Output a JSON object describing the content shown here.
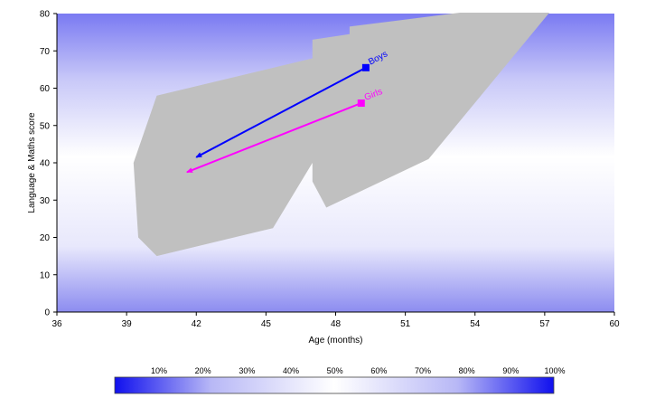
{
  "chart_data": {
    "type": "line",
    "xlabel": "Age (months)",
    "ylabel": "Language & Maths score",
    "xlim": [
      36,
      60
    ],
    "ylim": [
      0,
      80
    ],
    "x_ticks": [
      "36",
      "39",
      "42",
      "45",
      "48",
      "51",
      "54",
      "57",
      "60"
    ],
    "y_ticks": [
      "0",
      "10",
      "20",
      "30",
      "40",
      "50",
      "60",
      "70",
      "80"
    ],
    "grid": false,
    "background": "vertical density gradient (blue at extremes, white in middle)",
    "region": {
      "color": "#c0c0c0",
      "points": [
        [
          39.5,
          20
        ],
        [
          40.3,
          15
        ],
        [
          45.3,
          22.5
        ],
        [
          47.0,
          40
        ],
        [
          47.0,
          35
        ],
        [
          47.6,
          28
        ],
        [
          52.0,
          41
        ],
        [
          57.3,
          81
        ],
        [
          54.3,
          81
        ],
        [
          50.5,
          78
        ],
        [
          48.6,
          76.5
        ],
        [
          48.6,
          74.5
        ],
        [
          47.0,
          73
        ],
        [
          47.0,
          68
        ],
        [
          40.3,
          58
        ],
        [
          39.3,
          40
        ]
      ]
    },
    "series": [
      {
        "name": "Boys",
        "color": "#0000ff",
        "x": [
          49.3,
          42.0
        ],
        "y": [
          65.5,
          41.5
        ]
      },
      {
        "name": "Girls",
        "color": "#ff00ff",
        "x": [
          49.1,
          41.6
        ],
        "y": [
          56.0,
          37.5
        ]
      }
    ],
    "legend": {
      "position": "bottom",
      "labels": [
        "10%",
        "20%",
        "30%",
        "40%",
        "50%",
        "60%",
        "70%",
        "80%",
        "90%",
        "100%"
      ],
      "colors": [
        "#2020f0",
        "#ffffff",
        "#2020f0"
      ]
    }
  }
}
